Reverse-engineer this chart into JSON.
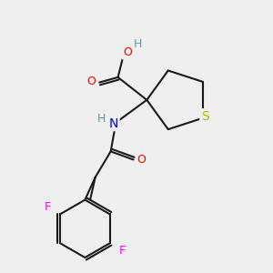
{
  "background_color": "#efefef",
  "bond_color": "#1a1a1a",
  "atom_colors": {
    "O": "#ff0000",
    "N": "#0000ee",
    "S": "#b8b800",
    "F": "#ee00ee",
    "H": "#5f9ea0",
    "C": "#1a1a1a"
  },
  "line_width": 1.5,
  "font_size": 9
}
